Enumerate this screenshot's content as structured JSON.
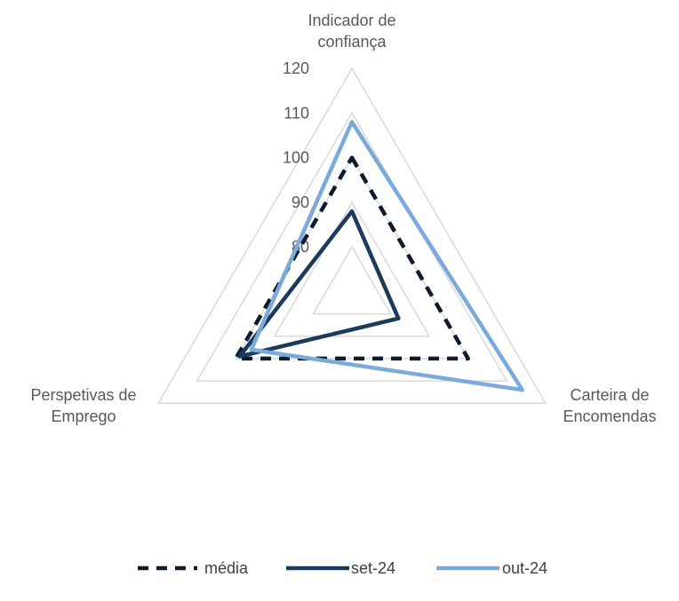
{
  "chart_data": {
    "type": "radar",
    "axes": [
      [
        "Indicador de",
        "confiança"
      ],
      [
        "Carteira de",
        "Encomendas"
      ],
      [
        "Perspetivas de",
        "Emprego"
      ]
    ],
    "rlim": [
      70,
      120
    ],
    "ticks": [
      80,
      90,
      100,
      110,
      120
    ],
    "tick_labels": [
      "80",
      "90",
      "100",
      "110",
      "120"
    ],
    "grid": true,
    "legend_position": "bottom",
    "series": [
      {
        "name": "média",
        "values": [
          100,
          100,
          100
        ],
        "color": "#0d1b2a",
        "dash": "dashed"
      },
      {
        "name": "set-24",
        "values": [
          88,
          82,
          99
        ],
        "color": "#1b3a5c",
        "dash": "solid"
      },
      {
        "name": "out-24",
        "values": [
          108,
          114,
          96
        ],
        "color": "#7aa9dc",
        "dash": "solid"
      }
    ]
  }
}
